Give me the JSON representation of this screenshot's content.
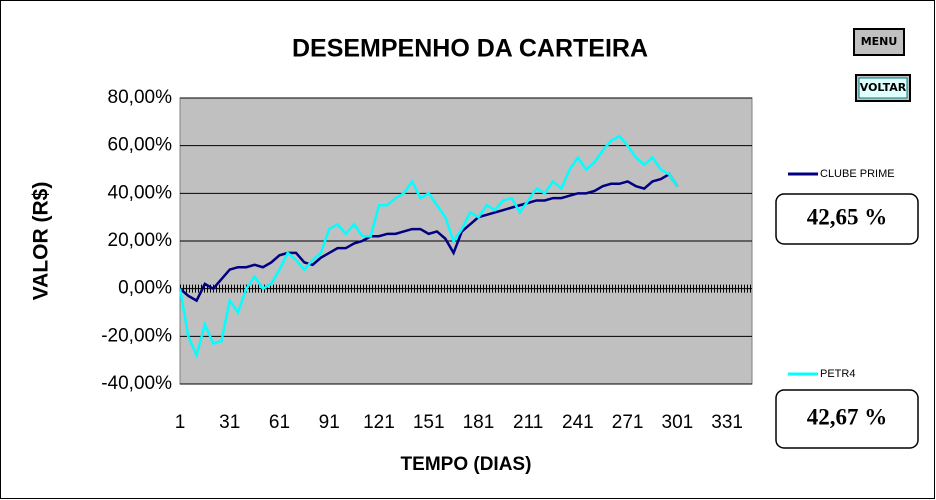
{
  "chart_data": {
    "type": "line",
    "title": "DESEMPENHO DA CARTEIRA",
    "x_label": "TEMPO (DIAS)",
    "y_label": "VALOR (R$)",
    "x": [
      1,
      6,
      11,
      16,
      21,
      26,
      31,
      36,
      41,
      46,
      51,
      56,
      61,
      66,
      71,
      76,
      81,
      86,
      91,
      96,
      101,
      106,
      111,
      116,
      121,
      126,
      131,
      136,
      141,
      146,
      151,
      156,
      161,
      166,
      171,
      176,
      181,
      186,
      191,
      196,
      201,
      206,
      211,
      216,
      221,
      226,
      231,
      236,
      241,
      246,
      251,
      256,
      261,
      266,
      271,
      276,
      281,
      286,
      291,
      296,
      301
    ],
    "series": [
      {
        "name": "CLUBE PRIME",
        "color": "#000080",
        "values": [
          0,
          -3,
          -5,
          2,
          0,
          4,
          8,
          9,
          9,
          10,
          9,
          11,
          14,
          15,
          15,
          11,
          10,
          13,
          15,
          17,
          17,
          19,
          20,
          22,
          22,
          23,
          23,
          24,
          25,
          25,
          23,
          24,
          21,
          15,
          24,
          27,
          30,
          31,
          32,
          33,
          34,
          35,
          36,
          37,
          37,
          38,
          38,
          39,
          40,
          40,
          41,
          43,
          44,
          44,
          45,
          43,
          42,
          45,
          46,
          48,
          43
        ]
      },
      {
        "name": "PETR4",
        "color": "#00ffff",
        "values": [
          0,
          -20,
          -28,
          -15,
          -23,
          -22,
          -5,
          -10,
          0,
          5,
          0,
          2,
          8,
          15,
          12,
          8,
          12,
          15,
          25,
          27,
          23,
          27,
          22,
          22,
          35,
          35,
          38,
          40,
          45,
          38,
          40,
          35,
          30,
          20,
          25,
          32,
          30,
          35,
          33,
          37,
          38,
          32,
          37,
          42,
          40,
          45,
          42,
          50,
          55,
          50,
          53,
          58,
          62,
          64,
          60,
          55,
          52,
          55,
          50,
          48,
          43
        ]
      }
    ],
    "xlim": [
      1,
      346
    ],
    "xticks": [
      1,
      31,
      61,
      91,
      121,
      151,
      181,
      211,
      241,
      271,
      301,
      331
    ],
    "ylim": [
      -40,
      80
    ],
    "yticks": [
      {
        "value": -40,
        "label": "-40,00%"
      },
      {
        "value": -20,
        "label": "-20,00%"
      },
      {
        "value": 0,
        "label": "0,00%"
      },
      {
        "value": 20,
        "label": "20,00%"
      },
      {
        "value": 40,
        "label": "40,00%"
      },
      {
        "value": 60,
        "label": "60,00%"
      },
      {
        "value": 80,
        "label": "80,00%"
      }
    ],
    "grid": true,
    "legend": "right",
    "annotations": [
      "42,65 %",
      "42,67 %"
    ]
  },
  "buttons": [
    "MENU",
    "VOLTAR"
  ]
}
